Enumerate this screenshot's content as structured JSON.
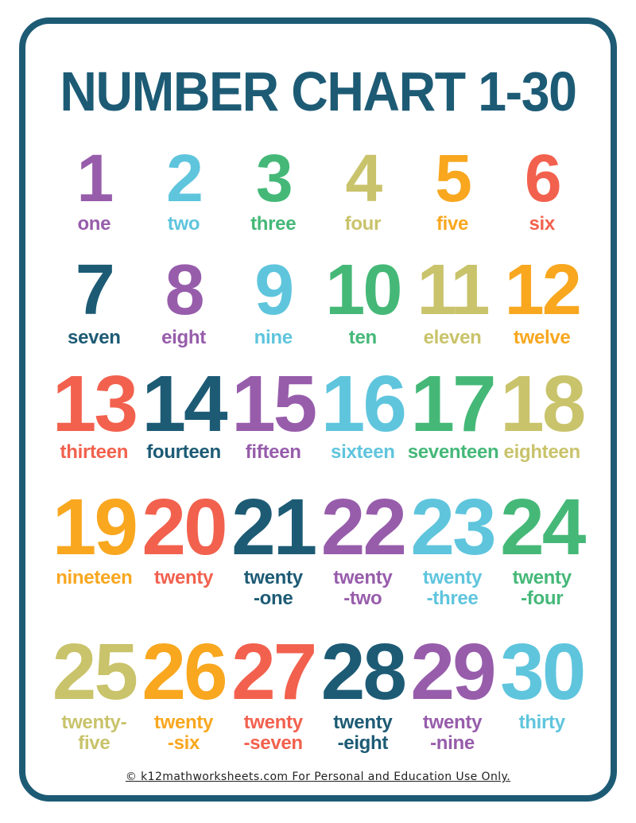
{
  "page": {
    "title": "NUMBER CHART 1-30",
    "footer": "© k12mathworksheets.com For Personal and Education Use Only."
  },
  "colors": {
    "border": "#1d5b75",
    "title": "#1d5b75",
    "footer_text": "#222222"
  },
  "palette": {
    "purple": "#975dab",
    "cyan": "#5fc5dd",
    "green": "#45b878",
    "olive": "#c9c36b",
    "orange": "#f8a71f",
    "red": "#f2614e",
    "teal": "#1d5b75"
  },
  "grid": {
    "rows": [
      {
        "cells": [
          {
            "number": "1",
            "word": "one",
            "color": "purple"
          },
          {
            "number": "2",
            "word": "two",
            "color": "cyan"
          },
          {
            "number": "3",
            "word": "three",
            "color": "green"
          },
          {
            "number": "4",
            "word": "four",
            "color": "olive"
          },
          {
            "number": "5",
            "word": "five",
            "color": "orange"
          },
          {
            "number": "6",
            "word": "six",
            "color": "red"
          }
        ]
      },
      {
        "cells": [
          {
            "number": "7",
            "word": "seven",
            "color": "teal"
          },
          {
            "number": "8",
            "word": "eight",
            "color": "purple"
          },
          {
            "number": "9",
            "word": "nine",
            "color": "cyan"
          },
          {
            "number": "10",
            "word": "ten",
            "color": "green"
          },
          {
            "number": "11",
            "word": "eleven",
            "color": "olive"
          },
          {
            "number": "12",
            "word": "twelve",
            "color": "orange"
          }
        ]
      },
      {
        "cells": [
          {
            "number": "13",
            "word": "thirteen",
            "color": "red"
          },
          {
            "number": "14",
            "word": "fourteen",
            "color": "teal"
          },
          {
            "number": "15",
            "word": "fifteen",
            "color": "purple"
          },
          {
            "number": "16",
            "word": "sixteen",
            "color": "cyan"
          },
          {
            "number": "17",
            "word": "seventeen",
            "color": "green"
          },
          {
            "number": "18",
            "word": "eighteen",
            "color": "olive"
          }
        ]
      },
      {
        "cells": [
          {
            "number": "19",
            "word": "nineteen",
            "color": "orange"
          },
          {
            "number": "20",
            "word": "twenty",
            "color": "red"
          },
          {
            "number": "21",
            "word": "twenty\n-one",
            "color": "teal"
          },
          {
            "number": "22",
            "word": "twenty\n-two",
            "color": "purple"
          },
          {
            "number": "23",
            "word": "twenty\n-three",
            "color": "cyan"
          },
          {
            "number": "24",
            "word": "twenty\n-four",
            "color": "green"
          }
        ]
      },
      {
        "cells": [
          {
            "number": "25",
            "word": "twenty-\nfive",
            "color": "olive"
          },
          {
            "number": "26",
            "word": "twenty\n-six",
            "color": "orange"
          },
          {
            "number": "27",
            "word": "twenty\n-seven",
            "color": "red"
          },
          {
            "number": "28",
            "word": "twenty\n-eight",
            "color": "teal"
          },
          {
            "number": "29",
            "word": "twenty\n-nine",
            "color": "purple"
          },
          {
            "number": "30",
            "word": "thirty",
            "color": "cyan"
          }
        ]
      }
    ]
  }
}
